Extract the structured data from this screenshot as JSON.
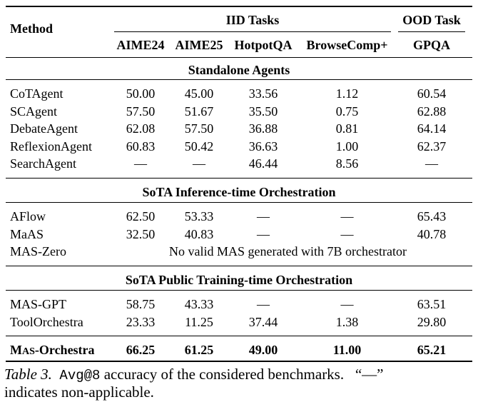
{
  "header": {
    "method": "Method",
    "iid_group": "IID Tasks",
    "ood_group": "OOD Task",
    "columns": [
      "AIME24",
      "AIME25",
      "HotpotQA",
      "BrowseComp+",
      "GPQA"
    ]
  },
  "sections": [
    {
      "title": "Standalone Agents",
      "rows": [
        {
          "method": "CoTAgent",
          "values": [
            "50.00",
            "45.00",
            "33.56",
            "1.12",
            "60.54"
          ]
        },
        {
          "method": "SCAgent",
          "values": [
            "57.50",
            "51.67",
            "35.50",
            "0.75",
            "62.88"
          ]
        },
        {
          "method": "DebateAgent",
          "values": [
            "62.08",
            "57.50",
            "36.88",
            "0.81",
            "64.14"
          ]
        },
        {
          "method": "ReflexionAgent",
          "values": [
            "60.83",
            "50.42",
            "36.63",
            "1.00",
            "62.37"
          ]
        },
        {
          "method": "SearchAgent",
          "values": [
            "—",
            "—",
            "46.44",
            "8.56",
            "—"
          ]
        }
      ]
    },
    {
      "title": "SoTA Inference-time Orchestration",
      "rows": [
        {
          "method": "AFlow",
          "values": [
            "62.50",
            "53.33",
            "—",
            "—",
            "65.43"
          ]
        },
        {
          "method": "MaAS",
          "values": [
            "32.50",
            "40.83",
            "—",
            "—",
            "40.78"
          ]
        },
        {
          "method": "MAS-Zero",
          "note": "No valid MAS generated with 7B orchestrator"
        }
      ]
    },
    {
      "title": "SoTA Public Training-time Orchestration",
      "rows": [
        {
          "method": "MAS-GPT",
          "values": [
            "58.75",
            "43.33",
            "—",
            "—",
            "63.51"
          ]
        },
        {
          "method": "ToolOrchestra",
          "values": [
            "23.33",
            "11.25",
            "37.44",
            "1.38",
            "29.80"
          ]
        }
      ]
    }
  ],
  "final_row": {
    "method_first": "M",
    "method_caps": "AS",
    "method_rest": "-Orchestra",
    "values": [
      "66.25",
      "61.25",
      "49.00",
      "11.00",
      "65.21"
    ]
  },
  "caption": {
    "label": "Table 3.",
    "avg": "Avg@8",
    "text1": "accuracy of the considered benchmarks.",
    "quote": "“—”",
    "line2": "indicates non-applicable."
  }
}
